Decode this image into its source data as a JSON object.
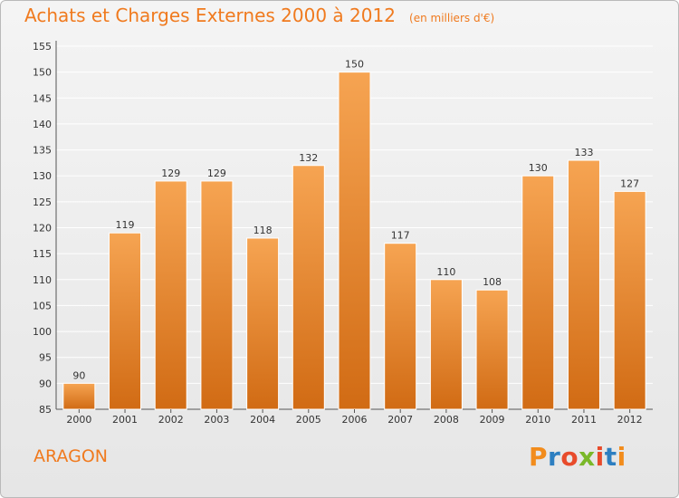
{
  "header": {
    "title": "Achats et Charges Externes 2000 à 2012",
    "unit": "(en milliers d'€)"
  },
  "footer": {
    "place": "ARAGON",
    "brand": "Proxiti"
  },
  "colors": {
    "title": "#f07a1e",
    "bar_light": "#f6a452",
    "bar_dark": "#d16b14",
    "axis": "#555555",
    "grid": "#ffffff",
    "brand_letters": [
      "#f28c1c",
      "#2d7fc1",
      "#e84b2b",
      "#7ab829",
      "#e84b2b",
      "#2d7fc1",
      "#f28c1c"
    ]
  },
  "chart_data": {
    "type": "bar",
    "title": "Achats et Charges Externes 2000 à 2012",
    "subtitle": "(en milliers d'€)",
    "categories": [
      "2000",
      "2001",
      "2002",
      "2003",
      "2004",
      "2005",
      "2006",
      "2007",
      "2008",
      "2009",
      "2010",
      "2011",
      "2012"
    ],
    "values": [
      90,
      119,
      129,
      129,
      118,
      132,
      150,
      117,
      110,
      108,
      130,
      133,
      127
    ],
    "ylim": [
      85,
      155
    ],
    "yticks": [
      85,
      90,
      95,
      100,
      105,
      110,
      115,
      120,
      125,
      130,
      135,
      140,
      145,
      150,
      155
    ],
    "grid": true,
    "data_labels": true
  }
}
